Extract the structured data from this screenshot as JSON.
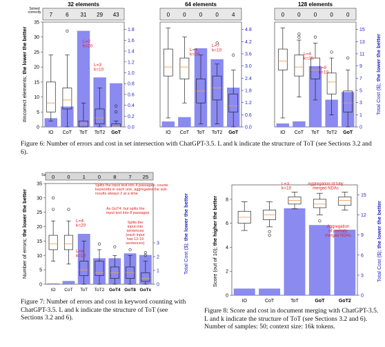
{
  "fig6": {
    "panels": [
      {
        "title": "32 elements",
        "ylim": [
          0,
          35
        ],
        "rticks": [
          "0.0",
          "0.2",
          "0.4",
          "0.6",
          "0.8",
          "1.0",
          "1.2",
          "1.4",
          "1.6",
          "1.8"
        ],
        "counts": [
          "7",
          "6",
          "31",
          "29",
          "43"
        ]
      },
      {
        "title": "64 elements",
        "ylim": [
          0,
          35
        ],
        "rticks": [
          "0.0",
          "0.6",
          "1.2",
          "1.8",
          "2.4",
          "3.0",
          "3.6",
          "4.2",
          "4.8"
        ],
        "counts": [
          "0",
          "0",
          "0",
          "0",
          "4"
        ]
      },
      {
        "title": "128 elements",
        "ylim": [
          0,
          35
        ],
        "rticks": [
          "0",
          "1",
          "3",
          "5",
          "7",
          "9",
          "11",
          "13",
          "15"
        ],
        "counts": [
          "0",
          "0",
          "0",
          "0",
          "0"
        ]
      }
    ],
    "solved_label": "Solved correctly",
    "ylabel_prefix": "#incorrect elements; ",
    "ylabel_bold": "the lower the better",
    "rlabel_prefix": "Total Cost ($); ",
    "rlabel_bold": "the lower the better",
    "xticks": [
      "IO",
      "CoT",
      "ToT",
      "ToT2",
      "GoT"
    ],
    "annotations": [
      {
        "panel": 0,
        "text": "L=2\nk=20"
      },
      {
        "panel": 0,
        "text": "L=3\nk=10"
      },
      {
        "panel": 1,
        "text": "L=4\nk=20"
      },
      {
        "panel": 1,
        "text": "L=7\nk=10"
      },
      {
        "panel": 2,
        "text": "L=4\nk=25"
      },
      {
        "panel": 2,
        "text": "L=9\nk=10"
      }
    ],
    "caption": "Figure 6: Number of errors and cost in set intersection with ChatGPT-3.5. L and k indicate the structure of ToT (see Sections 3.2 and 6)."
  },
  "fig7": {
    "solved_label": "Samples solved correctly",
    "counts": [
      "0",
      "0",
      "1",
      "0",
      "8",
      "7",
      "25"
    ],
    "xticks": [
      "IO",
      "CoT",
      "ToT",
      "ToT2",
      "GoT4",
      "GoT8",
      "GoTx"
    ],
    "yticks": [
      "0",
      "5",
      "10",
      "15",
      "20",
      "25",
      "30",
      "35"
    ],
    "rticks": [
      "0",
      "1",
      "2",
      "3"
    ],
    "ylabel_prefix": "Number of errors; ",
    "ylabel_bold": "the lower the better",
    "rlabel_prefix": "Total Cost ($); ",
    "rlabel_bold": "the lower the better",
    "notes": [
      "Splits the input text into 4 passages, counts keywords in each one, aggregates the sub-results always 2 at a time",
      "As GoT4, but splits the input text into 8 passages",
      "Splits the input into sentences (each input has 12-19 sentences)"
    ],
    "ann1": "L=4\nk=20",
    "ann2": "L=6\nk=10",
    "caption": "Figure 7: Number of errors and cost in keyword counting with ChatGPT-3.5. L and k indicate the structure of ToT (see Sections 3.2 and 6)."
  },
  "fig8": {
    "xticks": [
      "IO",
      "CoT",
      "ToT",
      "GoT",
      "GoT2"
    ],
    "yticks": [
      "0",
      "2",
      "4",
      "6",
      "8"
    ],
    "rticks": [
      "0",
      "3",
      "6",
      "9",
      "12",
      "15"
    ],
    "ylabel_prefix": "Score (out of 10); ",
    "ylabel_bold": "the higher the better",
    "rlabel_prefix": "Total Cost ($); ",
    "rlabel_bold": "the lower the better",
    "ann": "L=3\nk=10",
    "note1": "Aggregation of fully merged NDAs",
    "note2": "Aggregation of partially merged NDAs",
    "caption": "Figure 8: Score and cost in document merging with ChatGPT-3.5. L and k indicate the structure of ToT (see Sections 3.2 and 6). Number of samples: 50; context size: 16k tokens."
  },
  "chart_data": [
    {
      "type": "bar",
      "title": "32 elements",
      "categories": [
        "IO",
        "CoT",
        "ToT",
        "ToT2",
        "GoT"
      ],
      "series": [
        {
          "name": "cost",
          "values": [
            0.15,
            0.35,
            1.65,
            0.85,
            0.75
          ]
        }
      ]
    },
    {
      "type": "bar",
      "title": "64 elements",
      "categories": [
        "IO",
        "CoT",
        "ToT",
        "ToT2",
        "GoT"
      ],
      "series": [
        {
          "name": "cost",
          "values": [
            0.25,
            0.45,
            3.6,
            3.1,
            1.8
          ]
        }
      ]
    },
    {
      "type": "bar",
      "title": "128 elements",
      "categories": [
        "IO",
        "CoT",
        "ToT",
        "ToT2",
        "GoT"
      ],
      "series": [
        {
          "name": "cost",
          "values": [
            0.5,
            0.8,
            8.7,
            3.9,
            5.0
          ]
        }
      ]
    },
    {
      "type": "bar",
      "categories": [
        "IO",
        "CoT",
        "ToT",
        "ToT2",
        "GoT4",
        "GoT8",
        "GoTx"
      ],
      "series": [
        {
          "name": "cost",
          "values": [
            0.05,
            0.2,
            3.1,
            1.6,
            1.6,
            1.9,
            1.8
          ]
        }
      ]
    },
    {
      "type": "bar",
      "categories": [
        "IO",
        "CoT",
        "ToT",
        "GoT",
        "GoT2"
      ],
      "series": [
        {
          "name": "cost",
          "values": [
            1.0,
            1.0,
            13.0,
            10.5,
            9.8
          ]
        }
      ]
    }
  ],
  "colors": {
    "bar": "#7d7df0",
    "median": "#f0a050",
    "annot": "#e02020",
    "axis": "#2222cc"
  }
}
